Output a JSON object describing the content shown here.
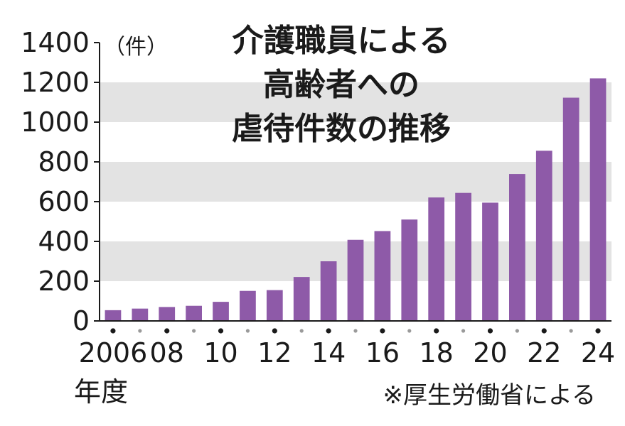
{
  "chart_data": {
    "type": "bar",
    "title_lines": [
      "介護職員による",
      "高齢者への",
      "虐待件数の推移"
    ],
    "unit_label": "（件）",
    "x_axis_label": "年度",
    "source_note": "※厚生労働省による",
    "categories": [
      "2006",
      "2007",
      "2008",
      "2009",
      "2010",
      "2011",
      "2012",
      "2013",
      "2014",
      "2015",
      "2016",
      "2017",
      "2018",
      "2019",
      "2020",
      "2021",
      "2022",
      "2023",
      "2024"
    ],
    "values": [
      54,
      62,
      70,
      76,
      96,
      151,
      155,
      221,
      300,
      408,
      452,
      510,
      621,
      644,
      595,
      739,
      856,
      1123,
      1220
    ],
    "ylim": [
      0,
      1400
    ],
    "y_ticks": [
      0,
      200,
      400,
      600,
      800,
      1000,
      1200,
      1400
    ],
    "x_tick_labels": [
      {
        "index": 0,
        "label": "2006"
      },
      {
        "index": 2,
        "label": "08"
      },
      {
        "index": 4,
        "label": "10"
      },
      {
        "index": 6,
        "label": "12"
      },
      {
        "index": 8,
        "label": "14"
      },
      {
        "index": 10,
        "label": "16"
      },
      {
        "index": 12,
        "label": "18"
      },
      {
        "index": 14,
        "label": "20"
      },
      {
        "index": 16,
        "label": "22"
      },
      {
        "index": 18,
        "label": "24"
      }
    ],
    "bar_color": "#8e5aa8",
    "band_color": "#e3e3e3",
    "major_dot_color": "#1a1a1a",
    "minor_dot_color": "#9a9a9a"
  }
}
